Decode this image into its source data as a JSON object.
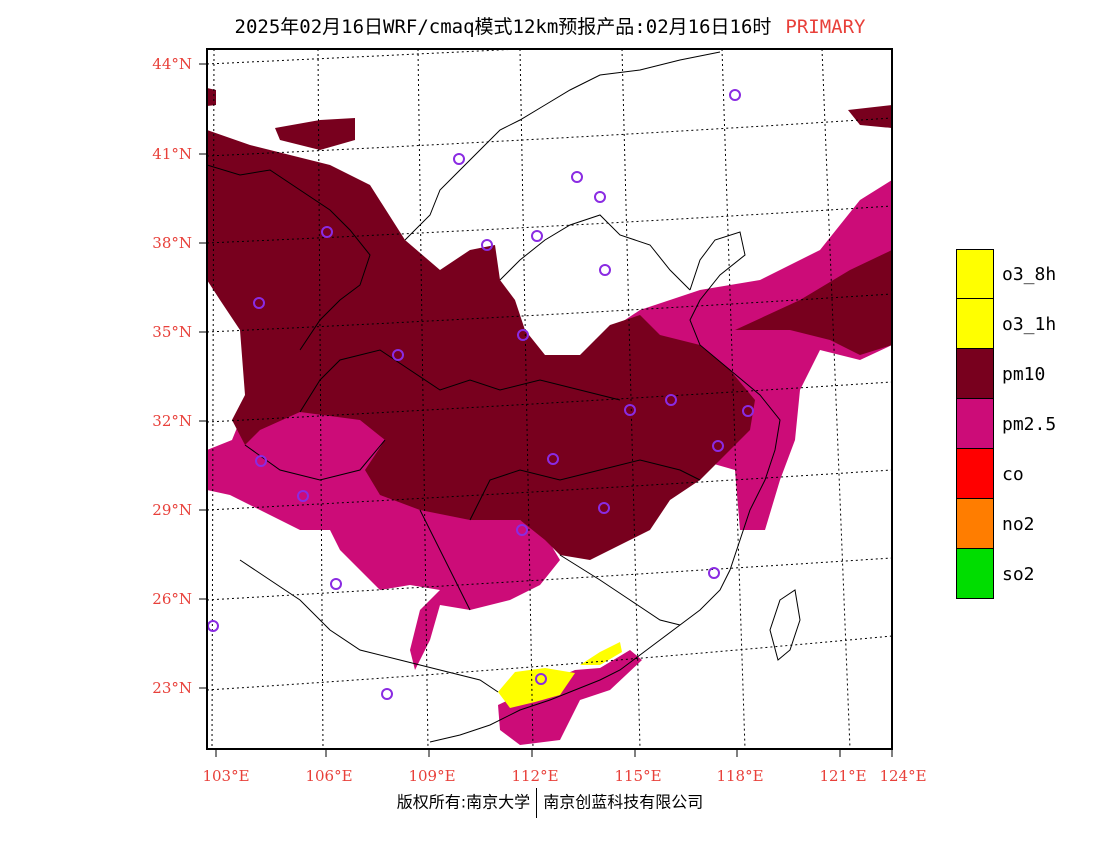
{
  "header": {
    "title": "2025年02月16日WRF/cmaq模式12km预报产品:02月16日16时",
    "tag": "PRIMARY"
  },
  "map": {
    "lat_labels": [
      "44°N",
      "41°N",
      "38°N",
      "35°N",
      "32°N",
      "29°N",
      "26°N",
      "23°N"
    ],
    "lon_labels": [
      "103°E",
      "106°E",
      "109°E",
      "112°E",
      "115°E",
      "118°E",
      "121°E",
      "124°E"
    ]
  },
  "legend": {
    "items": [
      {
        "label": "o3_8h",
        "color": "#ffff00"
      },
      {
        "label": "o3_1h",
        "color": "#ffff00"
      },
      {
        "label": "pm10",
        "color": "#78001e"
      },
      {
        "label": "pm2.5",
        "color": "#cc0c78"
      },
      {
        "label": "co",
        "color": "#ff0000"
      },
      {
        "label": "no2",
        "color": "#ff7d00"
      },
      {
        "label": "so2",
        "color": "#00dd00"
      }
    ]
  },
  "colors": {
    "pm10": "#78001e",
    "pm25": "#cc0c78",
    "o3": "#ffff00",
    "station": "#8a2be2",
    "labels": "#e8403a"
  },
  "footer": {
    "left": "版权所有:南京大学",
    "right": "南京创蓝科技有限公司"
  }
}
